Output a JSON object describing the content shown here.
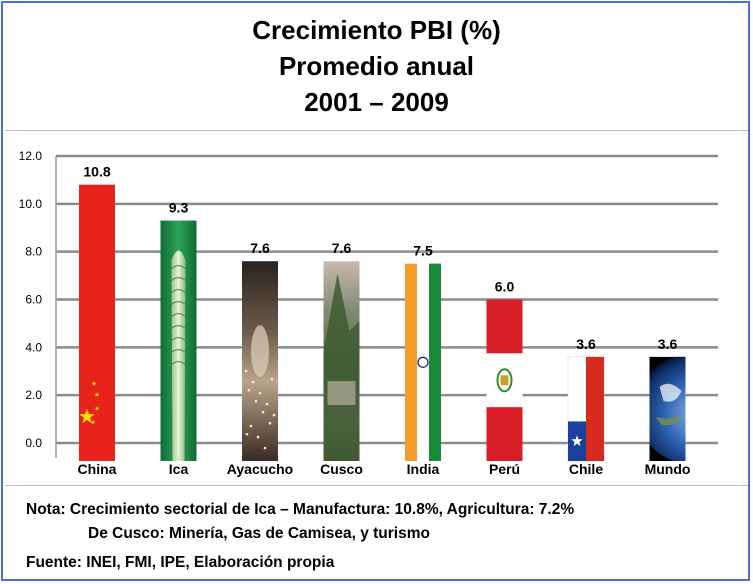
{
  "chart_data": {
    "type": "bar",
    "title_lines": [
      "Crecimiento PBI (%)",
      "Promedio anual",
      "2001 – 2009"
    ],
    "categories": [
      "China",
      "Ica",
      "Ayacucho",
      "Cusco",
      "India",
      "Perú",
      "Chile",
      "Mundo"
    ],
    "values": [
      10.8,
      9.3,
      7.6,
      7.6,
      7.5,
      6.0,
      3.6,
      3.6
    ],
    "value_labels": [
      "10.8",
      "9.3",
      "7.6",
      "7.6",
      "7.5",
      "6.0",
      "3.6",
      "3.6"
    ],
    "y_ticks": [
      "0.0",
      "2.0",
      "4.0",
      "6.0",
      "8.0",
      "10.0",
      "12.0"
    ],
    "ylim": [
      0,
      12
    ],
    "grid": true,
    "bar_fills": [
      "china-flag",
      "asparagus-photo",
      "ayacucho-photo",
      "cusco-photo",
      "india-flag",
      "peru-flag",
      "chile-flag",
      "earth-photo"
    ],
    "colors": {
      "china_red": "#e8231c",
      "china_star": "#ffde00",
      "india_saffron": "#f59d2a",
      "india_green": "#178a37",
      "peru_red": "#d91e27",
      "chile_blue": "#1c3f9e",
      "chile_red": "#d52b1e",
      "asparagus_green": "#1a8f45",
      "grid": "#8c8c8c"
    }
  },
  "notes": {
    "line1": "Nota: Crecimiento sectorial de Ica – Manufactura: 10.8%, Agricultura: 7.2%",
    "line2": "De Cusco: Minería, Gas de Camisea, y turismo",
    "line3": "Fuente: INEI, FMI, IPE, Elaboración propia"
  }
}
